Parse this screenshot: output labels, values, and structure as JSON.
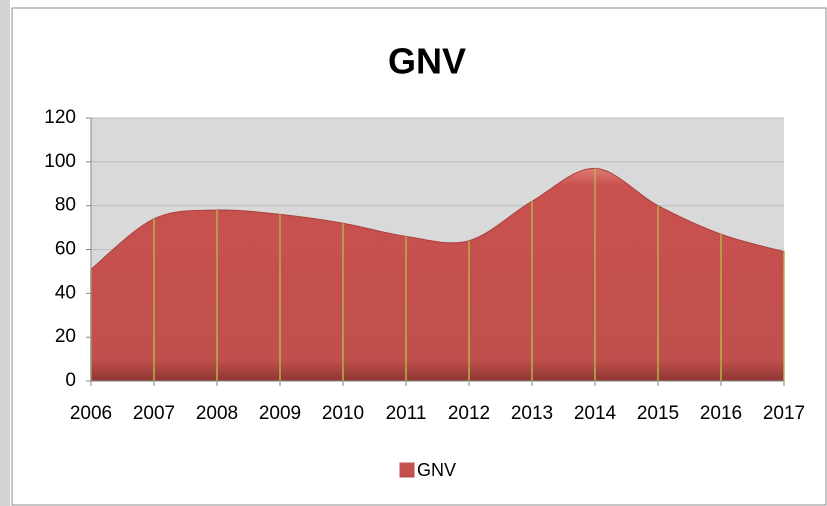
{
  "chart_data": {
    "type": "area",
    "title": "GNV",
    "categories": [
      "2006",
      "2007",
      "2008",
      "2009",
      "2010",
      "2011",
      "2012",
      "2013",
      "2014",
      "2015",
      "2016",
      "2017"
    ],
    "series": [
      {
        "name": "GNV",
        "color": "#c0504d",
        "values": [
          51,
          74,
          78,
          76,
          72,
          66,
          64,
          82,
          97,
          80,
          67,
          59
        ]
      }
    ],
    "ylim": [
      0,
      120
    ],
    "yticks": [
      0,
      20,
      40,
      60,
      80,
      100,
      120
    ],
    "grid": true,
    "legend": "bottom"
  }
}
